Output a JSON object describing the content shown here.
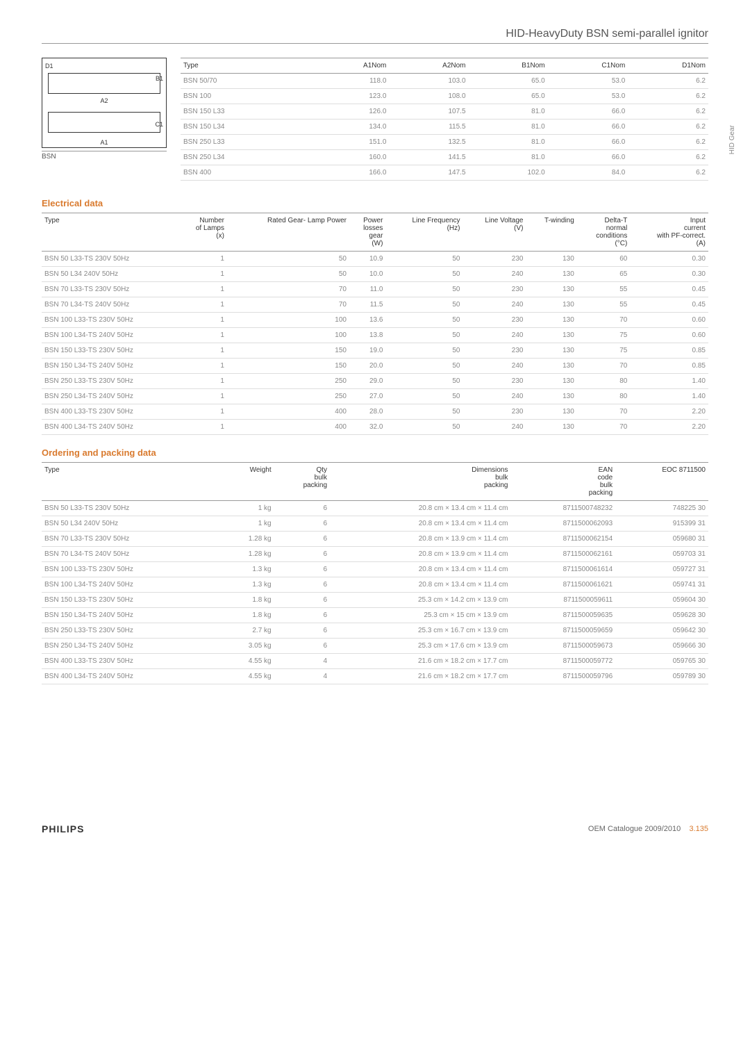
{
  "header": {
    "title": "HID-HeavyDuty BSN semi-parallel ignitor"
  },
  "side_label": "HID Gear",
  "diagram": {
    "caption": "BSN",
    "labels": {
      "d1": "D1",
      "b1": "B1",
      "a2": "A2",
      "c1": "C1",
      "a1": "A1"
    }
  },
  "dim_table": {
    "columns": [
      "Type",
      "A1Nom",
      "A2Nom",
      "B1Nom",
      "C1Nom",
      "D1Nom"
    ],
    "rows": [
      [
        "BSN 50/70",
        "118.0",
        "103.0",
        "65.0",
        "53.0",
        "6.2"
      ],
      [
        "BSN 100",
        "123.0",
        "108.0",
        "65.0",
        "53.0",
        "6.2"
      ],
      [
        "BSN 150 L33",
        "126.0",
        "107.5",
        "81.0",
        "66.0",
        "6.2"
      ],
      [
        "BSN 150 L34",
        "134.0",
        "115.5",
        "81.0",
        "66.0",
        "6.2"
      ],
      [
        "BSN 250 L33",
        "151.0",
        "132.5",
        "81.0",
        "66.0",
        "6.2"
      ],
      [
        "BSN 250 L34",
        "160.0",
        "141.5",
        "81.0",
        "66.0",
        "6.2"
      ],
      [
        "BSN 400",
        "166.0",
        "147.5",
        "102.0",
        "84.0",
        "6.2"
      ]
    ]
  },
  "electrical": {
    "title": "Electrical data",
    "columns": [
      "Type",
      "Number of Lamps (x)",
      "Rated Gear- Lamp Power",
      "Power losses gear (W)",
      "Line Frequency (Hz)",
      "Line Voltage (V)",
      "T-winding",
      "Delta-T normal conditions (°C)",
      "Input current with PF-correct. (A)"
    ],
    "rows": [
      [
        "BSN 50 L33-TS 230V 50Hz",
        "1",
        "50",
        "10.9",
        "50",
        "230",
        "130",
        "60",
        "0.30"
      ],
      [
        "BSN 50 L34 240V 50Hz",
        "1",
        "50",
        "10.0",
        "50",
        "240",
        "130",
        "65",
        "0.30"
      ],
      [
        "BSN 70 L33-TS 230V 50Hz",
        "1",
        "70",
        "11.0",
        "50",
        "230",
        "130",
        "55",
        "0.45"
      ],
      [
        "BSN 70 L34-TS 240V 50Hz",
        "1",
        "70",
        "11.5",
        "50",
        "240",
        "130",
        "55",
        "0.45"
      ],
      [
        "BSN 100 L33-TS 230V 50Hz",
        "1",
        "100",
        "13.6",
        "50",
        "230",
        "130",
        "70",
        "0.60"
      ],
      [
        "BSN 100 L34-TS 240V 50Hz",
        "1",
        "100",
        "13.8",
        "50",
        "240",
        "130",
        "75",
        "0.60"
      ],
      [
        "BSN 150 L33-TS 230V 50Hz",
        "1",
        "150",
        "19.0",
        "50",
        "230",
        "130",
        "75",
        "0.85"
      ],
      [
        "BSN 150 L34-TS 240V 50Hz",
        "1",
        "150",
        "20.0",
        "50",
        "240",
        "130",
        "70",
        "0.85"
      ],
      [
        "BSN 250 L33-TS 230V 50Hz",
        "1",
        "250",
        "29.0",
        "50",
        "230",
        "130",
        "80",
        "1.40"
      ],
      [
        "BSN 250 L34-TS 240V 50Hz",
        "1",
        "250",
        "27.0",
        "50",
        "240",
        "130",
        "80",
        "1.40"
      ],
      [
        "BSN 400 L33-TS 230V 50Hz",
        "1",
        "400",
        "28.0",
        "50",
        "230",
        "130",
        "70",
        "2.20"
      ],
      [
        "BSN 400 L34-TS 240V 50Hz",
        "1",
        "400",
        "32.0",
        "50",
        "240",
        "130",
        "70",
        "2.20"
      ]
    ]
  },
  "ordering": {
    "title": "Ordering and packing data",
    "columns": [
      "Type",
      "Weight",
      "Qty bulk packing",
      "Dimensions bulk packing",
      "EAN code bulk packing",
      "EOC 8711500"
    ],
    "rows": [
      [
        "BSN 50 L33-TS 230V 50Hz",
        "1 kg",
        "6",
        "20.8 cm × 13.4 cm × 11.4 cm",
        "8711500748232",
        "748225 30"
      ],
      [
        "BSN 50 L34 240V 50Hz",
        "1 kg",
        "6",
        "20.8 cm × 13.4 cm × 11.4 cm",
        "8711500062093",
        "915399 31"
      ],
      [
        "BSN 70 L33-TS 230V 50Hz",
        "1.28 kg",
        "6",
        "20.8 cm × 13.9 cm × 11.4 cm",
        "8711500062154",
        "059680 31"
      ],
      [
        "BSN 70 L34-TS 240V 50Hz",
        "1.28 kg",
        "6",
        "20.8 cm × 13.9 cm × 11.4 cm",
        "8711500062161",
        "059703 31"
      ],
      [
        "BSN 100 L33-TS 230V 50Hz",
        "1.3 kg",
        "6",
        "20.8 cm × 13.4 cm × 11.4 cm",
        "8711500061614",
        "059727 31"
      ],
      [
        "BSN 100 L34-TS 240V 50Hz",
        "1.3 kg",
        "6",
        "20.8 cm × 13.4 cm × 11.4 cm",
        "8711500061621",
        "059741 31"
      ],
      [
        "BSN 150 L33-TS 230V 50Hz",
        "1.8 kg",
        "6",
        "25.3 cm × 14.2 cm × 13.9 cm",
        "8711500059611",
        "059604 30"
      ],
      [
        "BSN 150 L34-TS 240V 50Hz",
        "1.8 kg",
        "6",
        "25.3 cm × 15 cm × 13.9 cm",
        "8711500059635",
        "059628 30"
      ],
      [
        "BSN 250 L33-TS 230V 50Hz",
        "2.7 kg",
        "6",
        "25.3 cm × 16.7 cm × 13.9 cm",
        "8711500059659",
        "059642 30"
      ],
      [
        "BSN 250 L34-TS 240V 50Hz",
        "3.05 kg",
        "6",
        "25.3 cm × 17.6 cm × 13.9 cm",
        "8711500059673",
        "059666 30"
      ],
      [
        "BSN 400 L33-TS 230V 50Hz",
        "4.55 kg",
        "4",
        "21.6 cm × 18.2 cm × 17.7 cm",
        "8711500059772",
        "059765 30"
      ],
      [
        "BSN 400 L34-TS 240V 50Hz",
        "4.55 kg",
        "4",
        "21.6 cm × 18.2 cm × 17.7 cm",
        "8711500059796",
        "059789 30"
      ]
    ]
  },
  "footer": {
    "brand": "PHILIPS",
    "catalogue": "OEM Catalogue 2009/2010",
    "page": "3.135"
  }
}
